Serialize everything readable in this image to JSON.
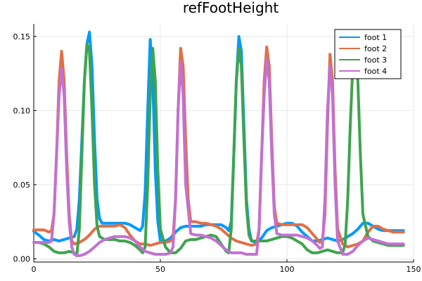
{
  "chart_data": {
    "type": "line",
    "title": "refFootHeight",
    "xlabel": "",
    "ylabel": "",
    "xlim": [
      0,
      150
    ],
    "ylim": [
      0.0,
      0.15
    ],
    "x_ticks": [
      0,
      50,
      100,
      150
    ],
    "y_ticks": [
      0.0,
      0.05,
      0.1,
      0.15
    ],
    "x_tick_labels": [
      "0",
      "50",
      "100",
      "150"
    ],
    "y_tick_labels": [
      "0.00",
      "0.05",
      "0.10",
      "0.15"
    ],
    "grid": true,
    "legend_position": "top-right",
    "series": [
      {
        "name": "foot 1",
        "color": "#009AFA",
        "x": [
          0,
          2,
          4,
          6,
          8,
          10,
          12,
          14,
          16,
          17,
          18,
          19,
          20,
          21,
          22,
          23,
          24,
          25,
          26,
          27,
          28,
          30,
          32,
          34,
          36,
          38,
          40,
          42,
          43,
          44,
          45,
          46,
          47,
          48,
          49,
          50,
          52,
          54,
          56,
          58,
          60,
          62,
          64,
          66,
          68,
          70,
          72,
          74,
          76,
          77,
          78,
          79,
          80,
          81,
          82,
          83,
          84,
          85,
          86,
          88,
          90,
          92,
          94,
          96,
          98,
          100,
          102,
          104,
          106,
          108,
          110,
          112,
          114,
          116,
          118,
          120,
          122,
          124,
          126,
          128,
          130,
          132,
          134,
          136,
          138,
          140,
          142,
          144,
          146
        ],
        "y": [
          0.0185,
          0.016,
          0.013,
          0.012,
          0.013,
          0.012,
          0.013,
          0.014,
          0.015,
          0.02,
          0.04,
          0.08,
          0.12,
          0.145,
          0.153,
          0.13,
          0.08,
          0.04,
          0.027,
          0.024,
          0.024,
          0.024,
          0.024,
          0.024,
          0.024,
          0.023,
          0.021,
          0.019,
          0.022,
          0.045,
          0.1,
          0.148,
          0.12,
          0.06,
          0.025,
          0.012,
          0.012,
          0.014,
          0.018,
          0.021,
          0.022,
          0.022,
          0.022,
          0.022,
          0.023,
          0.023,
          0.023,
          0.023,
          0.021,
          0.019,
          0.025,
          0.07,
          0.12,
          0.15,
          0.14,
          0.09,
          0.04,
          0.02,
          0.012,
          0.011,
          0.014,
          0.019,
          0.021,
          0.022,
          0.023,
          0.024,
          0.024,
          0.022,
          0.018,
          0.015,
          0.012,
          0.012,
          0.013,
          0.014,
          0.013,
          0.012,
          0.013,
          0.015,
          0.017,
          0.02,
          0.024,
          0.024,
          0.022,
          0.02,
          0.019,
          0.019,
          0.019,
          0.019,
          0.019
        ]
      },
      {
        "name": "foot 2",
        "color": "#E26F46",
        "x": [
          0,
          2,
          4,
          6,
          7,
          8,
          9,
          10,
          11,
          12,
          13,
          14,
          15,
          16,
          18,
          20,
          22,
          24,
          26,
          28,
          30,
          32,
          34,
          36,
          38,
          40,
          42,
          44,
          46,
          48,
          50,
          52,
          54,
          55,
          56,
          57,
          58,
          59,
          60,
          61,
          62,
          64,
          66,
          68,
          70,
          72,
          74,
          76,
          78,
          80,
          82,
          84,
          86,
          88,
          89,
          90,
          91,
          92,
          93,
          94,
          95,
          96,
          98,
          100,
          102,
          104,
          106,
          108,
          110,
          112,
          113,
          114,
          115,
          116,
          117,
          118,
          119,
          120,
          122,
          124,
          126,
          128,
          130,
          132,
          134,
          136,
          138,
          140,
          142,
          144,
          146
        ],
        "y": [
          0.0195,
          0.0195,
          0.0195,
          0.018,
          0.019,
          0.03,
          0.07,
          0.12,
          0.14,
          0.12,
          0.07,
          0.03,
          0.012,
          0.01,
          0.011,
          0.013,
          0.016,
          0.02,
          0.022,
          0.022,
          0.022,
          0.022,
          0.023,
          0.021,
          0.016,
          0.012,
          0.01,
          0.01,
          0.009,
          0.01,
          0.011,
          0.011,
          0.012,
          0.014,
          0.04,
          0.1,
          0.142,
          0.13,
          0.08,
          0.04,
          0.025,
          0.025,
          0.024,
          0.024,
          0.023,
          0.022,
          0.02,
          0.017,
          0.014,
          0.012,
          0.011,
          0.01,
          0.009,
          0.01,
          0.02,
          0.07,
          0.12,
          0.143,
          0.13,
          0.08,
          0.035,
          0.024,
          0.023,
          0.023,
          0.023,
          0.023,
          0.023,
          0.021,
          0.017,
          0.013,
          0.011,
          0.012,
          0.03,
          0.09,
          0.138,
          0.12,
          0.06,
          0.02,
          0.01,
          0.008,
          0.009,
          0.01,
          0.012,
          0.018,
          0.022,
          0.022,
          0.02,
          0.019,
          0.018,
          0.018,
          0.018
        ]
      },
      {
        "name": "foot 3",
        "color": "#3EA44E",
        "x": [
          0,
          2,
          4,
          6,
          8,
          10,
          12,
          14,
          16,
          17,
          18,
          19,
          20,
          21,
          22,
          23,
          24,
          25,
          26,
          28,
          30,
          32,
          34,
          36,
          38,
          40,
          42,
          43,
          44,
          45,
          46,
          47,
          48,
          49,
          50,
          52,
          54,
          56,
          58,
          60,
          62,
          64,
          66,
          68,
          70,
          72,
          74,
          76,
          77,
          78,
          79,
          80,
          81,
          82,
          83,
          84,
          85,
          86,
          88,
          90,
          92,
          94,
          96,
          98,
          100,
          102,
          104,
          106,
          108,
          110,
          112,
          114,
          116,
          118,
          120,
          122,
          123,
          124,
          125,
          126,
          127,
          128,
          129,
          130,
          132,
          134,
          136,
          138,
          140,
          142,
          144,
          146
        ],
        "y": [
          0.011,
          0.011,
          0.01,
          0.008,
          0.005,
          0.004,
          0.004,
          0.005,
          0.004,
          0.002,
          0.02,
          0.07,
          0.12,
          0.145,
          0.14,
          0.1,
          0.05,
          0.022,
          0.015,
          0.013,
          0.013,
          0.013,
          0.012,
          0.012,
          0.011,
          0.009,
          0.006,
          0.004,
          0.008,
          0.05,
          0.11,
          0.142,
          0.12,
          0.06,
          0.02,
          0.008,
          0.004,
          0.004,
          0.007,
          0.012,
          0.013,
          0.013,
          0.014,
          0.015,
          0.016,
          0.015,
          0.01,
          0.005,
          0.004,
          0.02,
          0.07,
          0.12,
          0.142,
          0.13,
          0.08,
          0.035,
          0.016,
          0.012,
          0.012,
          0.012,
          0.012,
          0.013,
          0.014,
          0.015,
          0.015,
          0.014,
          0.012,
          0.01,
          0.006,
          0.004,
          0.004,
          0.005,
          0.006,
          0.005,
          0.004,
          0.004,
          0.01,
          0.04,
          0.09,
          0.13,
          0.14,
          0.12,
          0.07,
          0.03,
          0.015,
          0.012,
          0.011,
          0.01,
          0.009,
          0.009,
          0.009,
          0.009
        ]
      },
      {
        "name": "foot 4",
        "color": "#C271D2",
        "x": [
          0,
          2,
          4,
          6,
          7,
          8,
          9,
          10,
          11,
          12,
          13,
          14,
          15,
          16,
          18,
          20,
          22,
          24,
          26,
          28,
          30,
          32,
          34,
          36,
          38,
          40,
          42,
          44,
          46,
          48,
          50,
          52,
          54,
          55,
          56,
          57,
          58,
          59,
          60,
          62,
          64,
          66,
          68,
          70,
          72,
          74,
          76,
          78,
          80,
          82,
          84,
          86,
          88,
          89,
          90,
          91,
          92,
          93,
          94,
          95,
          96,
          98,
          100,
          102,
          104,
          106,
          108,
          110,
          112,
          113,
          114,
          115,
          116,
          117,
          118,
          119,
          120,
          122,
          124,
          126,
          128,
          130,
          132,
          134,
          136,
          138,
          140,
          142,
          144,
          146
        ],
        "y": [
          0.011,
          0.011,
          0.011,
          0.011,
          0.012,
          0.03,
          0.07,
          0.11,
          0.128,
          0.11,
          0.06,
          0.025,
          0.008,
          0.003,
          0.002,
          0.003,
          0.005,
          0.008,
          0.011,
          0.013,
          0.014,
          0.015,
          0.015,
          0.015,
          0.014,
          0.012,
          0.008,
          0.005,
          0.004,
          0.003,
          0.003,
          0.003,
          0.004,
          0.008,
          0.04,
          0.1,
          0.133,
          0.11,
          0.05,
          0.017,
          0.016,
          0.016,
          0.015,
          0.014,
          0.012,
          0.009,
          0.006,
          0.004,
          0.004,
          0.004,
          0.003,
          0.003,
          0.003,
          0.02,
          0.07,
          0.11,
          0.135,
          0.12,
          0.07,
          0.03,
          0.017,
          0.016,
          0.016,
          0.016,
          0.016,
          0.015,
          0.014,
          0.012,
          0.009,
          0.007,
          0.008,
          0.04,
          0.1,
          0.13,
          0.11,
          0.05,
          0.012,
          0.003,
          0.003,
          0.005,
          0.009,
          0.012,
          0.014,
          0.013,
          0.012,
          0.011,
          0.01,
          0.01,
          0.01,
          0.01
        ]
      }
    ]
  }
}
